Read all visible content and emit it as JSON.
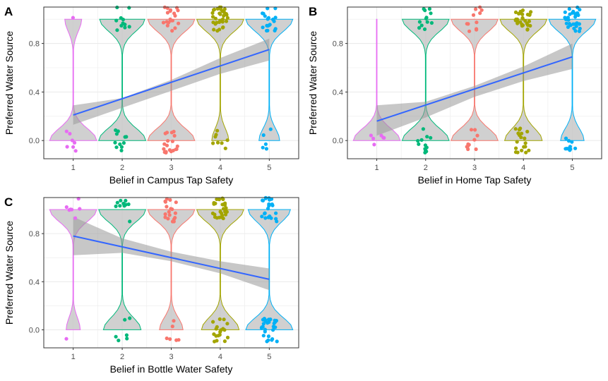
{
  "chart_data": [
    {
      "type": "violin",
      "tag": "A",
      "xlabel": "Belief in Campus Tap Safety",
      "ylabel": "Preferred Water Source",
      "categories": [
        "1",
        "2",
        "3",
        "4",
        "5"
      ],
      "y_ticks": [
        0.0,
        0.4,
        0.8
      ],
      "y_tick_labels": [
        "0.0",
        "0.4",
        "0.8"
      ],
      "ylim": [
        -0.15,
        1.1
      ],
      "xlim": [
        0.4,
        5.6
      ],
      "grid": true,
      "proportion_1": [
        0.18,
        0.48,
        0.5,
        0.82,
        0.78
      ],
      "n": [
        8,
        22,
        38,
        42,
        24
      ],
      "trend_line": {
        "x": [
          1,
          5
        ],
        "y": [
          0.21,
          0.75
        ]
      },
      "confidence_band": {
        "x": [
          1,
          2,
          3,
          4,
          5
        ],
        "lower": [
          0.13,
          0.27,
          0.41,
          0.55,
          0.66
        ],
        "upper": [
          0.29,
          0.35,
          0.5,
          0.68,
          0.84
        ]
      }
    },
    {
      "type": "violin",
      "tag": "B",
      "xlabel": "Belief in Home Tap Safety",
      "ylabel": "Preferred Water Source",
      "categories": [
        "1",
        "2",
        "3",
        "4",
        "5"
      ],
      "y_ticks": [
        0.0,
        0.4,
        0.8
      ],
      "y_tick_labels": [
        "0.0",
        "0.4",
        "0.8"
      ],
      "ylim": [
        -0.15,
        1.1
      ],
      "xlim": [
        0.4,
        5.6
      ],
      "grid": true,
      "proportion_1": [
        0.0,
        0.5,
        0.5,
        0.6,
        0.75
      ],
      "n": [
        6,
        24,
        22,
        48,
        40
      ],
      "trend_line": {
        "x": [
          1,
          5
        ],
        "y": [
          0.16,
          0.69
        ]
      },
      "confidence_band": {
        "x": [
          1,
          2,
          3,
          4,
          5
        ],
        "lower": [
          0.04,
          0.19,
          0.36,
          0.49,
          0.59
        ],
        "upper": [
          0.29,
          0.32,
          0.45,
          0.61,
          0.8
        ]
      }
    },
    {
      "type": "violin",
      "tag": "C",
      "xlabel": "Belief in Bottle Water Safety",
      "ylabel": "Preferred Water Source",
      "categories": [
        "1",
        "2",
        "3",
        "4",
        "5"
      ],
      "y_ticks": [
        0.0,
        0.4,
        0.8
      ],
      "y_tick_labels": [
        "0.0",
        "0.4",
        "0.8"
      ],
      "ylim": [
        -0.15,
        1.1
      ],
      "xlim": [
        0.4,
        5.6
      ],
      "grid": true,
      "proportion_1": [
        0.85,
        0.6,
        0.75,
        0.6,
        0.45
      ],
      "n": [
        8,
        16,
        24,
        46,
        52
      ],
      "trend_line": {
        "x": [
          1,
          5
        ],
        "y": [
          0.78,
          0.42
        ]
      },
      "confidence_band": {
        "x": [
          1,
          2,
          3,
          4,
          5
        ],
        "lower": [
          0.62,
          0.64,
          0.57,
          0.47,
          0.33
        ],
        "upper": [
          0.94,
          0.76,
          0.65,
          0.57,
          0.51
        ]
      }
    }
  ],
  "colors": {
    "categories": [
      "#E76BF3",
      "#00B87A",
      "#F8766D",
      "#A3A500",
      "#00B0F6"
    ],
    "trend_line": "#3366FF",
    "band": "#999999",
    "violin_fill": "#c8c8c8",
    "grid": "#ebebeb",
    "panel_border": "#333333"
  }
}
